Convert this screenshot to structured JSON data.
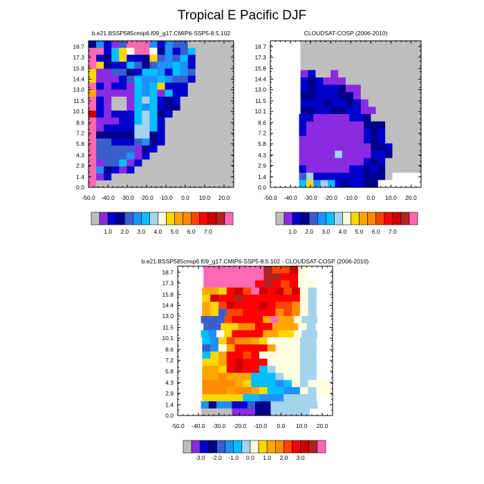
{
  "figure": {
    "title": "Tropical E Pacific DJF"
  },
  "chart_data": [
    {
      "type": "heatmap",
      "title": "b.e21.BSSP585cmip6.f09_g17.CMIP6-SSP5-8.5.102",
      "x_ticks": [
        "-50.0",
        "-40.0",
        "-30.0",
        "-20.0",
        "-10.0",
        "0.0",
        "10.0",
        "20.0"
      ],
      "y_ticks": [
        "0.0",
        "1.4",
        "2.9",
        "4.3",
        "5.8",
        "7.2",
        "8.6",
        "10.1",
        "11.5",
        "13.0",
        "14.4",
        "15.8",
        "17.3",
        "18.7"
      ],
      "xlim": [
        -50,
        25
      ],
      "ylim": [
        0,
        19.5
      ],
      "colorbar": {
        "colors": [
          "#bebebe",
          "#8a2be2",
          "#0000cd",
          "#00008b",
          "#3a5fcd",
          "#1e90ff",
          "#00bfff",
          "#a4d3ee",
          "#ffffe0",
          "#ffd700",
          "#ffa500",
          "#ff8c00",
          "#ff4500",
          "#ff0000",
          "#cd0000",
          "#b22222",
          "#ff69b4"
        ],
        "labels": [
          "1.0",
          "2.0",
          "3.0",
          "4.0",
          "5.0",
          "6.0",
          "7.0"
        ]
      }
    },
    {
      "type": "heatmap",
      "title": "CLOUDSAT-COSP (2006-2010)",
      "x_ticks": [
        "-50.0",
        "-40.0",
        "-30.0",
        "-20.0",
        "-10.0",
        "0.0",
        "10.0",
        "20.0"
      ],
      "y_ticks": [
        "0.0",
        "1.4",
        "2.9",
        "4.3",
        "5.8",
        "7.2",
        "8.6",
        "10.1",
        "11.5",
        "13.0",
        "14.4",
        "15.8",
        "17.3",
        "18.7"
      ],
      "xlim": [
        -50,
        25
      ],
      "ylim": [
        0,
        19.5
      ],
      "colorbar": {
        "colors": [
          "#bebebe",
          "#8a2be2",
          "#0000cd",
          "#00008b",
          "#3a5fcd",
          "#1e90ff",
          "#00bfff",
          "#a4d3ee",
          "#ffffe0",
          "#ffd700",
          "#ffa500",
          "#ff8c00",
          "#ff4500",
          "#ff0000",
          "#cd0000",
          "#b22222",
          "#ff69b4"
        ],
        "labels": [
          "1.0",
          "2.0",
          "3.0",
          "4.0",
          "5.0",
          "6.0",
          "7.0"
        ]
      }
    },
    {
      "type": "heatmap",
      "title": "b.e21.BSSP585cmip6.f09_g17.CMIP6-SSP5-8.5.102 - CLOUDSAT-COSP (2006-2010)",
      "x_ticks": [
        "-50.0",
        "-40.0",
        "-30.0",
        "-20.0",
        "-10.0",
        "0.0",
        "10.0",
        "20.0"
      ],
      "y_ticks": [
        "0.0",
        "1.4",
        "2.9",
        "4.3",
        "5.8",
        "7.2",
        "8.6",
        "10.1",
        "11.5",
        "13.0",
        "14.4",
        "15.8",
        "17.3",
        "18.7"
      ],
      "xlim": [
        -50,
        25
      ],
      "ylim": [
        0,
        19.5
      ],
      "colorbar": {
        "colors": [
          "#bebebe",
          "#8a2be2",
          "#0000cd",
          "#00008b",
          "#3a5fcd",
          "#1e90ff",
          "#00bfff",
          "#a4d3ee",
          "#ffffe0",
          "#ffd700",
          "#ffa500",
          "#ff8c00",
          "#ff4500",
          "#ff0000",
          "#cd0000",
          "#b22222",
          "#ff69b4"
        ],
        "labels": [
          "-3.0",
          "-2.0",
          "-1.0",
          "0.0",
          "1.0",
          "2.0",
          "3.0"
        ]
      }
    }
  ]
}
